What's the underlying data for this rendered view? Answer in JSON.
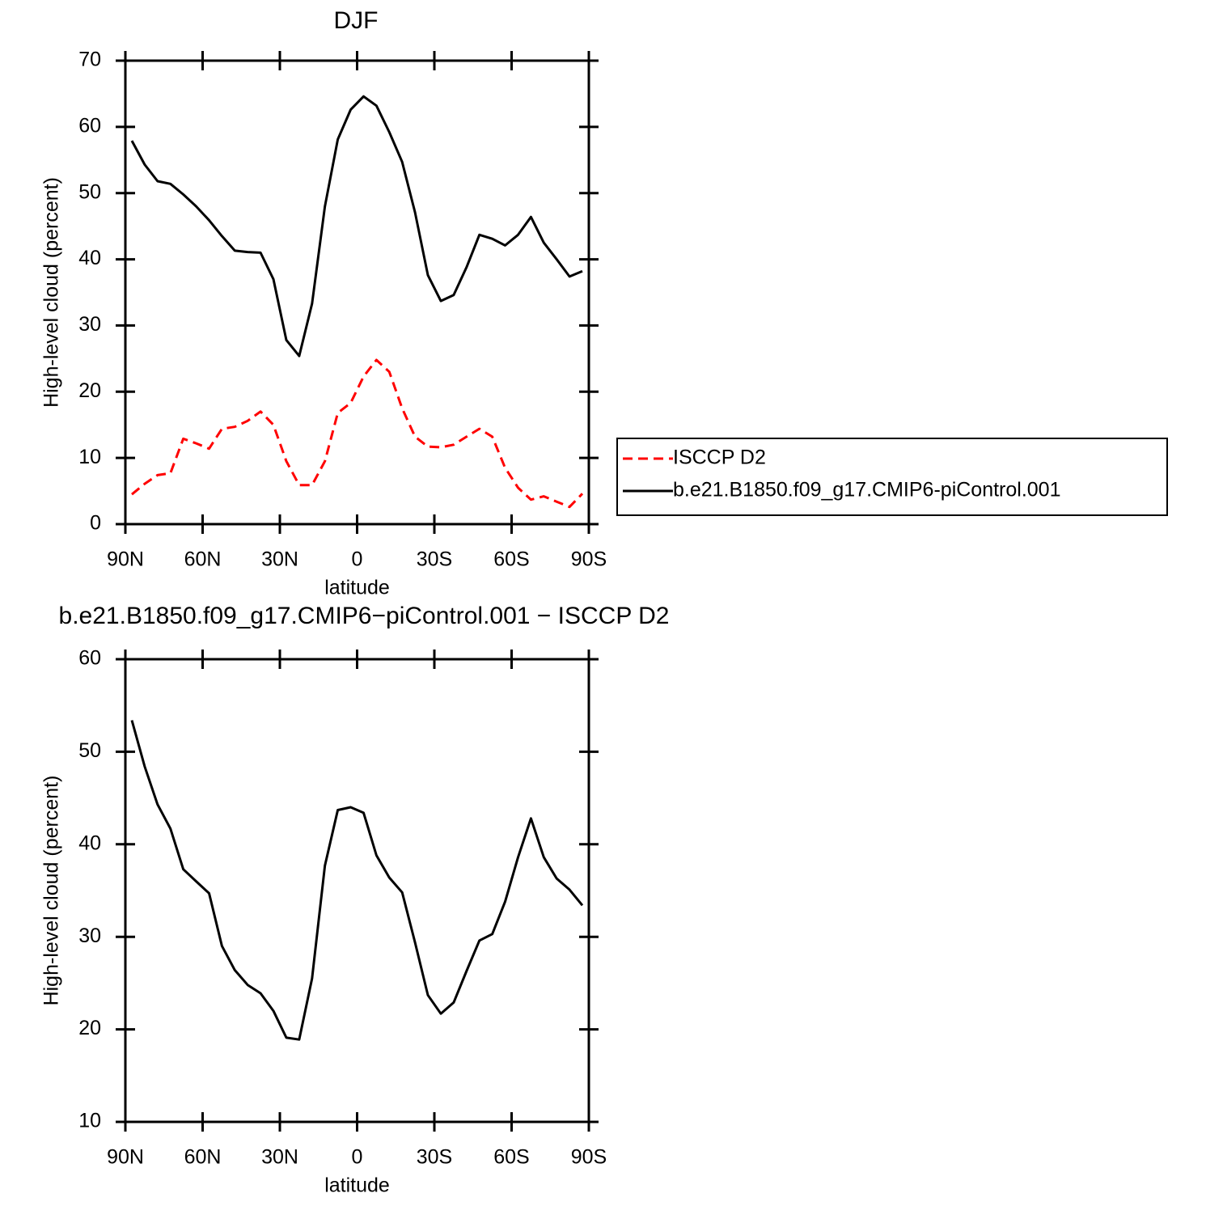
{
  "chart_data": [
    {
      "type": "line",
      "title": "DJF",
      "xlabel": "latitude",
      "ylabel": "High-level cloud (percent)",
      "x": [
        87.5,
        82.5,
        77.5,
        72.5,
        67.5,
        62.5,
        57.5,
        52.5,
        47.5,
        42.5,
        37.5,
        32.5,
        27.5,
        22.5,
        17.5,
        12.5,
        7.5,
        2.5,
        -2.5,
        -7.5,
        -12.5,
        -17.5,
        -22.5,
        -27.5,
        -32.5,
        -37.5,
        -42.5,
        -47.5,
        -52.5,
        -57.5,
        -62.5,
        -67.5,
        -72.5,
        -77.5,
        -82.5,
        -87.5
      ],
      "series": [
        {
          "name": "ISCCP D2",
          "color": "#ff0000",
          "dashed": true,
          "values": [
            4.5,
            6.1,
            7.4,
            7.7,
            12.9,
            12.2,
            11.4,
            14.4,
            14.7,
            15.6,
            17,
            15,
            9.5,
            5.9,
            5.9,
            9.5,
            16.8,
            18.3,
            22.3,
            24.8,
            23,
            17.5,
            13.2,
            11.7,
            11.6,
            12,
            13.2,
            14.4,
            13.2,
            8.5,
            5.5,
            3.7,
            4.2,
            3.4,
            2.6,
            4.6
          ]
        },
        {
          "name": "b.e21.B1850.f09_g17.CMIP6-piControl.001",
          "color": "#000000",
          "dashed": false,
          "values": [
            57.9,
            54.3,
            51.8,
            51.4,
            49.8,
            48,
            45.9,
            43.5,
            41.3,
            41.1,
            41,
            37,
            27.8,
            25.4,
            33.3,
            48,
            58.1,
            62.6,
            64.6,
            63.2,
            59.2,
            54.7,
            47.1,
            37.6,
            33.7,
            34.6,
            38.8,
            43.7,
            43.1,
            42.1,
            43.7,
            46.4,
            42.5,
            40,
            37.4,
            38.2
          ]
        }
      ],
      "xlim": [
        90,
        -90
      ],
      "xticks": [
        {
          "value": 90,
          "label": "90N"
        },
        {
          "value": 60,
          "label": "60N"
        },
        {
          "value": 30,
          "label": "30N"
        },
        0,
        {
          "value": -30,
          "label": "30S"
        },
        {
          "value": -60,
          "label": "60S"
        },
        {
          "value": -90,
          "label": "90S"
        }
      ],
      "ylim": [
        0,
        70
      ],
      "yticks": [
        0,
        10,
        20,
        30,
        40,
        50,
        60,
        70
      ],
      "legend": "right"
    },
    {
      "type": "line",
      "title": "b.e21.B1850.f09_g17.CMIP6−piControl.001 − ISCCP D2",
      "xlabel": "latitude",
      "ylabel": "High-level cloud (percent)",
      "x": [
        87.5,
        82.5,
        77.5,
        72.5,
        67.5,
        62.5,
        57.5,
        52.5,
        47.5,
        42.5,
        37.5,
        32.5,
        27.5,
        22.5,
        17.5,
        12.5,
        7.5,
        2.5,
        -2.5,
        -7.5,
        -12.5,
        -17.5,
        -22.5,
        -27.5,
        -32.5,
        -37.5,
        -42.5,
        -47.5,
        -52.5,
        -57.5,
        -62.5,
        -67.5,
        -72.5,
        -77.5,
        -82.5,
        -87.5
      ],
      "values": [
        53.4,
        48.4,
        44.3,
        41.7,
        37.3,
        36,
        34.7,
        29,
        26.4,
        24.8,
        23.9,
        22,
        19.1,
        18.9,
        25.5,
        37.7,
        43.7,
        44,
        43.4,
        38.8,
        36.4,
        34.8,
        29.4,
        23.7,
        21.7,
        22.9,
        26.3,
        29.6,
        30.3,
        33.8,
        38.6,
        42.8,
        38.6,
        36.3,
        35.1,
        33.4
      ],
      "color": "#000000",
      "xlim": [
        90,
        -90
      ],
      "xticks": [
        {
          "value": 90,
          "label": "90N"
        },
        {
          "value": 60,
          "label": "60N"
        },
        {
          "value": 30,
          "label": "30N"
        },
        0,
        {
          "value": -30,
          "label": "30S"
        },
        {
          "value": -60,
          "label": "60S"
        },
        {
          "value": -90,
          "label": "90S"
        }
      ],
      "ylim": [
        10,
        60
      ],
      "yticks": [
        10,
        20,
        30,
        40,
        50,
        60
      ]
    }
  ]
}
